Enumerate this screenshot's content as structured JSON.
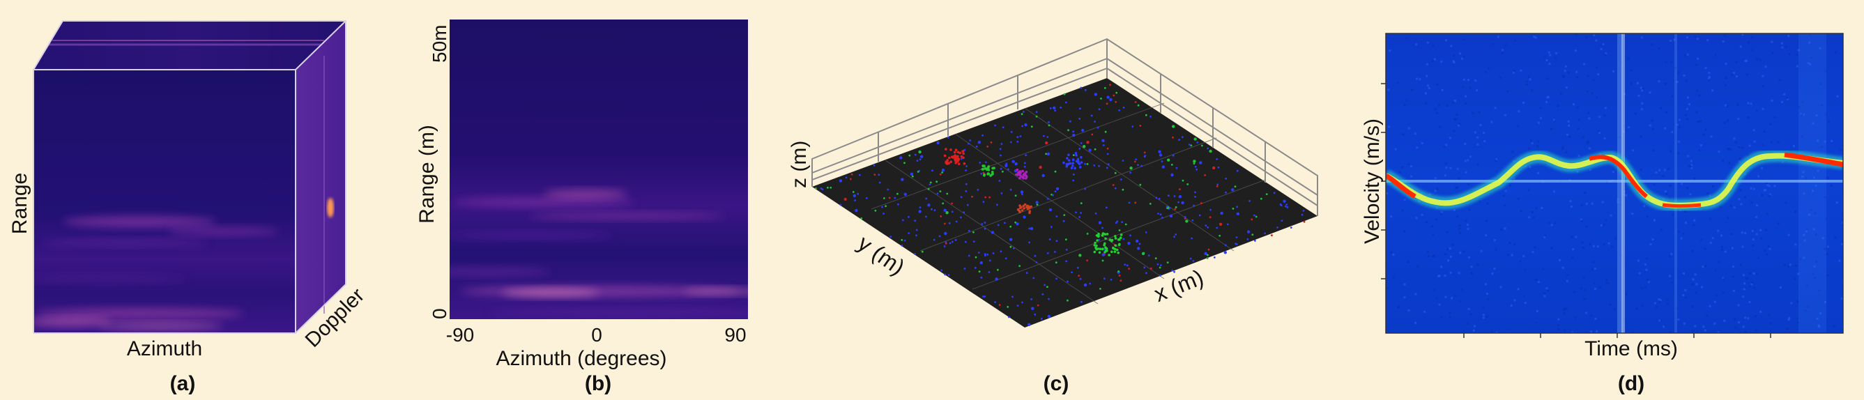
{
  "panel_a": {
    "caption": "(a)",
    "axis_range": "Range",
    "axis_azimuth": "Azimuth",
    "axis_doppler": "Doppler"
  },
  "panel_b": {
    "caption": "(b)",
    "ylabel": "Range (m)",
    "xlabel": "Azimuth (degrees)",
    "ytick_top": "50m",
    "ytick_bottom": "0",
    "xticks": [
      "-90",
      "0",
      "90"
    ]
  },
  "panel_c": {
    "caption": "(c)",
    "xlabel": "x (m)",
    "ylabel": "y (m)",
    "zlabel": "z (m)"
  },
  "panel_d": {
    "caption": "(d)",
    "ylabel": "Velocity (m/s)",
    "xlabel": "Time (ms)"
  },
  "colors": {
    "background": "#fcf1d9",
    "heatmap_base": "#1e0f6a",
    "heatmap_hot": "#ff8fd0",
    "point_cloud_floor": "#1f1f1f",
    "spectrogram_base": "#0a3dcc",
    "spectrogram_signal": "#ff2a00"
  }
}
